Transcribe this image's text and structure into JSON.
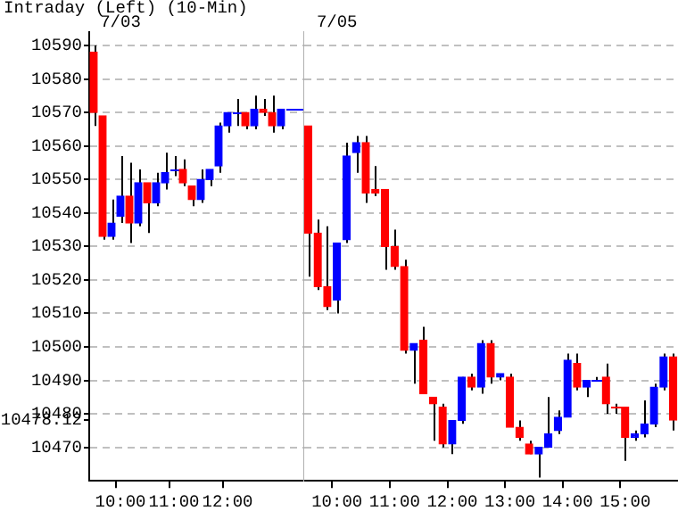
{
  "chart_data": [
    {
      "type": "candlestick",
      "title": "Intraday (Left) (10-Min)",
      "subtitle": "7/03",
      "categories": [
        null,
        null,
        null,
        "10:00",
        null,
        null,
        null,
        null,
        null,
        "11:00",
        null,
        null,
        null,
        null,
        null,
        "12:00",
        null,
        null,
        null,
        null,
        null,
        null,
        null,
        null
      ],
      "ohlc": [
        [
          10588,
          10590,
          10566,
          10570
        ],
        [
          10569,
          10569,
          10532,
          10533
        ],
        [
          10533,
          10544,
          10532,
          10537
        ],
        [
          10539,
          10557,
          10537,
          10545
        ],
        [
          10545,
          10555,
          10531,
          10537
        ],
        [
          10537,
          10553,
          10536,
          10549
        ],
        [
          10549,
          10549,
          10534,
          10543
        ],
        [
          10543,
          10552,
          10542,
          10549
        ],
        [
          10549,
          10558,
          10547,
          10552
        ],
        [
          10553,
          10557,
          10551,
          10553
        ],
        [
          10553,
          10556,
          10548,
          10549
        ],
        [
          10548,
          10548,
          10542,
          10544
        ],
        [
          10544,
          10553,
          10543,
          10550
        ],
        [
          10550,
          10553,
          10548,
          10553
        ],
        [
          10554,
          10567,
          10552,
          10566
        ],
        [
          10566,
          10570,
          10564,
          10570
        ],
        [
          10570,
          10574,
          10566,
          10570
        ],
        [
          10570,
          10570,
          10565,
          10566
        ],
        [
          10566,
          10575,
          10565,
          10571
        ],
        [
          10571,
          10574,
          10569,
          10570
        ],
        [
          10570,
          10575,
          10564,
          10566
        ],
        [
          10566,
          10571,
          10565,
          10571
        ],
        [
          10571,
          10571,
          10571,
          10571
        ],
        [
          10571,
          10571,
          10571,
          10571
        ]
      ],
      "colors": [
        "#ff0000",
        "#ff0000",
        "#0000ff",
        "#0000ff",
        "#ff0000",
        "#0000ff",
        "#ff0000",
        "#0000ff",
        "#0000ff",
        "#0000ff",
        "#ff0000",
        "#ff0000",
        "#0000ff",
        "#0000ff",
        "#0000ff",
        "#0000ff",
        "#0000ff",
        "#ff0000",
        "#0000ff",
        "#ff0000",
        "#ff0000",
        "#0000ff",
        "#0000ff",
        "#0000ff"
      ],
      "ylim": [
        10460,
        10594
      ],
      "yticks": [
        10470,
        {
          "value": 10478.12,
          "label": "10478.12"
        },
        10480,
        10490,
        10500,
        10510,
        10520,
        10530,
        10540,
        10550,
        10560,
        10570,
        10580,
        10590
      ],
      "grid": "y"
    },
    {
      "type": "candlestick",
      "subtitle": "7/05",
      "categories": [
        null,
        null,
        null,
        "10:00",
        null,
        null,
        null,
        null,
        null,
        "11:00",
        null,
        null,
        null,
        null,
        null,
        "12:00",
        null,
        null,
        null,
        null,
        null,
        "13:00",
        null,
        null,
        null,
        null,
        null,
        "14:00",
        null,
        null,
        null,
        null,
        null,
        "15:00",
        null,
        null,
        null,
        null,
        null
      ],
      "ohlc": [
        [
          10566,
          10566,
          10521,
          10534
        ],
        [
          10534,
          10538,
          10517,
          10518
        ],
        [
          10518,
          10536,
          10511,
          10512
        ],
        [
          10514,
          10531,
          10510,
          10531
        ],
        [
          10532,
          10561,
          10531,
          10557
        ],
        [
          10558,
          10563,
          10552,
          10561
        ],
        [
          10561,
          10563,
          10543,
          10546
        ],
        [
          10547,
          10554,
          10545,
          10546
        ],
        [
          10547,
          10547,
          10523,
          10530
        ],
        [
          10530,
          10535,
          10523,
          10524
        ],
        [
          10524,
          10526,
          10498,
          10499
        ],
        [
          10499,
          10501,
          10489,
          10501
        ],
        [
          10502,
          10506,
          10486,
          10486
        ],
        [
          10485,
          10485,
          10472,
          10483
        ],
        [
          10482,
          10483,
          10470,
          10471
        ],
        [
          10471,
          10478,
          10468,
          10478
        ],
        [
          10478,
          10491,
          10477,
          10491
        ],
        [
          10491,
          10492,
          10487,
          10488
        ],
        [
          10488,
          10502,
          10486,
          10501
        ],
        [
          10501,
          10502,
          10489,
          10491
        ],
        [
          10491,
          10492,
          10490,
          10492
        ],
        [
          10491,
          10492,
          10476,
          10476
        ],
        [
          10476,
          10478,
          10472,
          10473
        ],
        [
          10471,
          10472,
          10468,
          10468
        ],
        [
          10468,
          10470,
          10461,
          10470
        ],
        [
          10470,
          10485,
          10470,
          10474
        ],
        [
          10475,
          10481,
          10474,
          10479
        ],
        [
          10479,
          10498,
          10479,
          10496
        ],
        [
          10495,
          10498,
          10487,
          10488
        ],
        [
          10488,
          10490,
          10485,
          10490
        ],
        [
          10490,
          10491,
          10490,
          10490
        ],
        [
          10491,
          10495,
          10480,
          10483
        ],
        [
          10482,
          10483,
          10480,
          10482
        ],
        [
          10482,
          10482,
          10466,
          10473
        ],
        [
          10473,
          10475,
          10472,
          10474
        ],
        [
          10474,
          10484,
          10473,
          10477
        ],
        [
          10477,
          10489,
          10476,
          10488
        ],
        [
          10488,
          10498,
          10487,
          10497
        ],
        [
          10497,
          10498,
          10475,
          10478.12
        ]
      ],
      "colors": [
        "#ff0000",
        "#ff0000",
        "#ff0000",
        "#0000ff",
        "#0000ff",
        "#0000ff",
        "#ff0000",
        "#ff0000",
        "#ff0000",
        "#ff0000",
        "#ff0000",
        "#0000ff",
        "#ff0000",
        "#ff0000",
        "#ff0000",
        "#0000ff",
        "#0000ff",
        "#ff0000",
        "#0000ff",
        "#ff0000",
        "#0000ff",
        "#ff0000",
        "#ff0000",
        "#ff0000",
        "#0000ff",
        "#0000ff",
        "#0000ff",
        "#0000ff",
        "#ff0000",
        "#0000ff",
        "#0000ff",
        "#ff0000",
        "#ff0000",
        "#ff0000",
        "#0000ff",
        "#0000ff",
        "#0000ff",
        "#0000ff",
        "#ff0000"
      ],
      "ylim": [
        10460,
        10594
      ],
      "yticks": [
        10470,
        10480,
        10490,
        10500,
        10510,
        10520,
        10530,
        10540,
        10550,
        10560,
        10570,
        10580,
        10590
      ],
      "grid": "y",
      "tick_labels": "x"
    }
  ]
}
